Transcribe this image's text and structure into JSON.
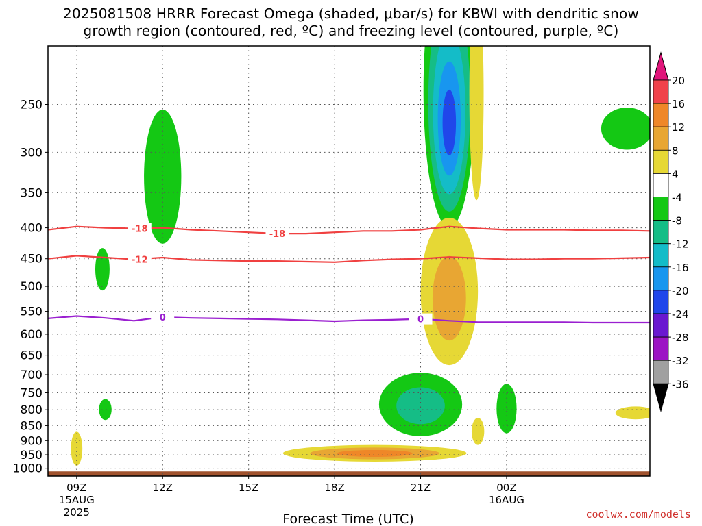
{
  "title": {
    "line1": "2025081508 HRRR Forecast Omega (shaded, μbar/s) for KBWI with dendritic snow",
    "line2": "growth region (contoured, red, ºC) and freezing level (contoured, purple, ºC)"
  },
  "credit": "coolwx.com/models",
  "colors": {
    "temperature_contour": "#f04040",
    "freezing_level": "#9a1fd0",
    "ground": "#a0522d",
    "grid": "#555555"
  },
  "chart_data": {
    "type": "heatmap",
    "xlabel": "Forecast Time (UTC)",
    "ylabel": "",
    "x_units": "hours from 2025-08-15 08Z",
    "xlim": [
      8,
      29
    ],
    "ylim_hpa": [
      1030,
      200
    ],
    "x_ticks": [
      {
        "x": 9,
        "label": "09Z",
        "sub1": "15AUG",
        "sub2": "2025"
      },
      {
        "x": 12,
        "label": "12Z",
        "sub1": "",
        "sub2": ""
      },
      {
        "x": 15,
        "label": "15Z",
        "sub1": "",
        "sub2": ""
      },
      {
        "x": 18,
        "label": "18Z",
        "sub1": "",
        "sub2": ""
      },
      {
        "x": 21,
        "label": "21Z",
        "sub1": "",
        "sub2": ""
      },
      {
        "x": 24,
        "label": "00Z",
        "sub1": "16AUG",
        "sub2": ""
      }
    ],
    "y_ticks": [
      {
        "p": 250,
        "label": "250"
      },
      {
        "p": 300,
        "label": "300"
      },
      {
        "p": 350,
        "label": "350"
      },
      {
        "p": 400,
        "label": "400"
      },
      {
        "p": 450,
        "label": "450"
      },
      {
        "p": 500,
        "label": "500"
      },
      {
        "p": 550,
        "label": "550"
      },
      {
        "p": 600,
        "label": "600"
      },
      {
        "p": 650,
        "label": "650"
      },
      {
        "p": 700,
        "label": "700"
      },
      {
        "p": 750,
        "label": "750"
      },
      {
        "p": 800,
        "label": "800"
      },
      {
        "p": 850,
        "label": "850"
      },
      {
        "p": 900,
        "label": "900"
      },
      {
        "p": 950,
        "label": "950"
      },
      {
        "p": 1000,
        "label": "1000"
      }
    ],
    "colorbar": {
      "labels": [
        "20",
        "16",
        "12",
        "8",
        "4",
        "-4",
        "-8",
        "-12",
        "-16",
        "-20",
        "-24",
        "-28",
        "-32",
        "-36"
      ],
      "bins": [
        {
          "from": 16,
          "to": 20,
          "color": "#f0424a"
        },
        {
          "from": 12,
          "to": 16,
          "color": "#ef8728"
        },
        {
          "from": 8,
          "to": 12,
          "color": "#e8a633"
        },
        {
          "from": 4,
          "to": 8,
          "color": "#e6d835"
        },
        {
          "from": -4,
          "to": 4,
          "color": "#ffffff"
        },
        {
          "from": -8,
          "to": -4,
          "color": "#14c814"
        },
        {
          "from": -12,
          "to": -8,
          "color": "#15bd86"
        },
        {
          "from": -16,
          "to": -12,
          "color": "#14bcc8"
        },
        {
          "from": -20,
          "to": -16,
          "color": "#1896ef"
        },
        {
          "from": -24,
          "to": -20,
          "color": "#2046ea"
        },
        {
          "from": -28,
          "to": -24,
          "color": "#6a18d0"
        },
        {
          "from": -32,
          "to": -28,
          "color": "#9c14c4"
        },
        {
          "from": -36,
          "to": -32,
          "color": "#a0a0a0"
        }
      ],
      "top_arrow_color": "#e0157a",
      "bottom_arrow_color": "#000000"
    },
    "omega_features": [
      {
        "center_t": 12.0,
        "center_p": 340,
        "half_t": 0.65,
        "half_p": 85,
        "levels": [
          -6
        ]
      },
      {
        "center_t": 9.9,
        "center_p": 470,
        "half_t": 0.25,
        "half_p": 38,
        "levels": [
          -6
        ]
      },
      {
        "center_t": 10.0,
        "center_p": 800,
        "half_t": 0.22,
        "half_p": 32,
        "levels": [
          -6
        ]
      },
      {
        "center_t": 9.0,
        "center_p": 930,
        "half_t": 0.2,
        "half_p": 60,
        "levels": [
          6
        ]
      },
      {
        "center_t": 22.0,
        "center_p": 270,
        "half_t": 0.9,
        "half_p": 130,
        "levels": [
          -6,
          -10,
          -14,
          -18,
          -22
        ]
      },
      {
        "center_t": 22.95,
        "center_p": 260,
        "half_t": 0.25,
        "half_p": 100,
        "levels": [
          6
        ]
      },
      {
        "center_t": 22.0,
        "center_p": 530,
        "half_t": 1.0,
        "half_p": 145,
        "levels": [
          6,
          10
        ]
      },
      {
        "center_t": 21.0,
        "center_p": 790,
        "half_t": 1.45,
        "half_p": 95,
        "levels": [
          -6,
          -10
        ]
      },
      {
        "center_t": 19.4,
        "center_p": 945,
        "half_t": 3.2,
        "half_p": 30,
        "levels": [
          6,
          10,
          14
        ]
      },
      {
        "center_t": 24.0,
        "center_p": 800,
        "half_t": 0.35,
        "half_p": 75,
        "levels": [
          -6
        ]
      },
      {
        "center_t": 23.0,
        "center_p": 870,
        "half_t": 0.22,
        "half_p": 45,
        "levels": [
          6
        ]
      },
      {
        "center_t": 28.2,
        "center_p": 275,
        "half_t": 0.9,
        "half_p": 22,
        "levels": [
          -6
        ]
      },
      {
        "center_t": 28.5,
        "center_p": 810,
        "half_t": 0.7,
        "half_p": 20,
        "levels": [
          6
        ]
      }
    ],
    "contours": [
      {
        "value": -18,
        "label": "-18",
        "color": "#f04040",
        "points": [
          [
            8,
            403
          ],
          [
            9,
            398
          ],
          [
            10,
            400
          ],
          [
            11,
            401
          ],
          [
            12,
            400
          ],
          [
            13,
            403
          ],
          [
            14,
            405
          ],
          [
            15,
            407
          ],
          [
            16,
            409
          ],
          [
            17,
            409
          ],
          [
            18,
            407
          ],
          [
            19,
            405
          ],
          [
            20,
            405
          ],
          [
            21,
            403
          ],
          [
            22,
            398
          ],
          [
            23,
            401
          ],
          [
            24,
            403
          ],
          [
            25,
            403
          ],
          [
            26,
            403
          ],
          [
            27,
            404
          ],
          [
            28,
            404
          ],
          [
            29,
            405
          ]
        ],
        "label_at": [
          [
            11.2,
            401
          ],
          [
            16.0,
            409
          ]
        ]
      },
      {
        "value": -12,
        "label": "-12",
        "color": "#f04040",
        "points": [
          [
            8,
            450
          ],
          [
            9,
            445
          ],
          [
            10,
            448
          ],
          [
            11,
            451
          ],
          [
            12,
            448
          ],
          [
            13,
            452
          ],
          [
            14,
            453
          ],
          [
            15,
            454
          ],
          [
            16,
            454
          ],
          [
            17,
            455
          ],
          [
            18,
            456
          ],
          [
            19,
            453
          ],
          [
            20,
            451
          ],
          [
            21,
            450
          ],
          [
            22,
            447
          ],
          [
            23,
            449
          ],
          [
            24,
            451
          ],
          [
            25,
            451
          ],
          [
            26,
            450
          ],
          [
            27,
            450
          ],
          [
            28,
            449
          ],
          [
            29,
            448
          ]
        ],
        "label_at": [
          [
            11.2,
            451
          ]
        ]
      },
      {
        "value": 0,
        "label": "0",
        "color": "#9a1fd0",
        "points": [
          [
            8,
            565
          ],
          [
            9,
            560
          ],
          [
            10,
            564
          ],
          [
            11,
            570
          ],
          [
            12,
            562
          ],
          [
            13,
            564
          ],
          [
            14,
            565
          ],
          [
            15,
            566
          ],
          [
            16,
            567
          ],
          [
            17,
            569
          ],
          [
            18,
            571
          ],
          [
            19,
            569
          ],
          [
            20,
            568
          ],
          [
            21,
            566
          ],
          [
            22,
            570
          ],
          [
            23,
            573
          ],
          [
            24,
            573
          ],
          [
            25,
            573
          ],
          [
            26,
            573
          ],
          [
            27,
            574
          ],
          [
            28,
            574
          ],
          [
            29,
            574
          ]
        ],
        "label_at": [
          [
            12.0,
            562
          ],
          [
            21.0,
            566
          ]
        ]
      }
    ]
  }
}
